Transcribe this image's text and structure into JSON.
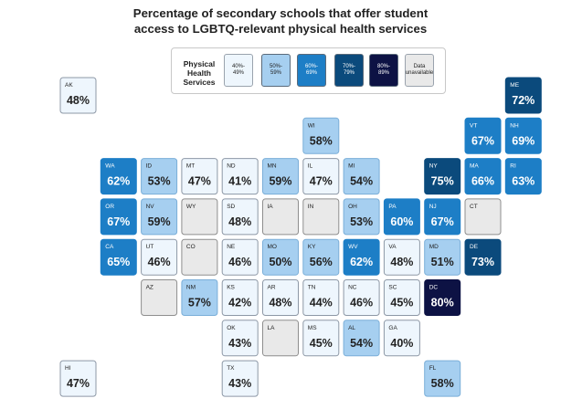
{
  "title_line1": "Percentage of secondary schools that offer student",
  "title_line2": "access to LGBTQ-relevant physical health services",
  "legend": {
    "title_lines": [
      "Physical",
      "Health",
      "Services"
    ],
    "bins": [
      {
        "lines": [
          "40%-",
          "49%"
        ],
        "fill": "#eef6fd",
        "text": "#222222"
      },
      {
        "lines": [
          "50%-",
          "59%"
        ],
        "fill": "#a6cff0",
        "text": "#222222"
      },
      {
        "lines": [
          "60%-",
          "69%"
        ],
        "fill": "#1d7ec6",
        "text": "#ffffff"
      },
      {
        "lines": [
          "70%-",
          "79%"
        ],
        "fill": "#0b4a7c",
        "text": "#ffffff"
      },
      {
        "lines": [
          "80%-",
          "89%"
        ],
        "fill": "#0d1244",
        "text": "#ffffff"
      },
      {
        "lines": [
          "Data",
          "unavailable"
        ],
        "fill": "#e9e9e9",
        "text": "#222222"
      }
    ]
  },
  "chart_data": {
    "type": "tile-map",
    "title": "Percentage of secondary schools that offer student access to LGBTQ-relevant physical health services",
    "legend_title": "Physical Health Services",
    "tiles": [
      {
        "state": "AK",
        "row": 0,
        "col": 0,
        "value": 48,
        "label": "48%"
      },
      {
        "state": "ME",
        "row": 0,
        "col": 11,
        "value": 72,
        "label": "72%"
      },
      {
        "state": "WI",
        "row": 1,
        "col": 6,
        "value": 58,
        "label": "58%"
      },
      {
        "state": "VT",
        "row": 1,
        "col": 10,
        "value": 67,
        "label": "67%"
      },
      {
        "state": "NH",
        "row": 1,
        "col": 11,
        "value": 69,
        "label": "69%"
      },
      {
        "state": "WA",
        "row": 2,
        "col": 1,
        "value": 62,
        "label": "62%"
      },
      {
        "state": "ID",
        "row": 2,
        "col": 2,
        "value": 53,
        "label": "53%"
      },
      {
        "state": "MT",
        "row": 2,
        "col": 3,
        "value": 47,
        "label": "47%"
      },
      {
        "state": "ND",
        "row": 2,
        "col": 4,
        "value": 41,
        "label": "41%"
      },
      {
        "state": "MN",
        "row": 2,
        "col": 5,
        "value": 59,
        "label": "59%"
      },
      {
        "state": "IL",
        "row": 2,
        "col": 6,
        "value": 47,
        "label": "47%"
      },
      {
        "state": "MI",
        "row": 2,
        "col": 7,
        "value": 54,
        "label": "54%"
      },
      {
        "state": "NY",
        "row": 2,
        "col": 9,
        "value": 75,
        "label": "75%"
      },
      {
        "state": "MA",
        "row": 2,
        "col": 10,
        "value": 66,
        "label": "66%"
      },
      {
        "state": "RI",
        "row": 2,
        "col": 11,
        "value": 63,
        "label": "63%"
      },
      {
        "state": "OR",
        "row": 3,
        "col": 1,
        "value": 67,
        "label": "67%"
      },
      {
        "state": "NV",
        "row": 3,
        "col": 2,
        "value": 59,
        "label": "59%"
      },
      {
        "state": "WY",
        "row": 3,
        "col": 3,
        "value": null,
        "label": ""
      },
      {
        "state": "SD",
        "row": 3,
        "col": 4,
        "value": 48,
        "label": "48%"
      },
      {
        "state": "IA",
        "row": 3,
        "col": 5,
        "value": null,
        "label": ""
      },
      {
        "state": "IN",
        "row": 3,
        "col": 6,
        "value": null,
        "label": ""
      },
      {
        "state": "OH",
        "row": 3,
        "col": 7,
        "value": 53,
        "label": "53%"
      },
      {
        "state": "PA",
        "row": 3,
        "col": 8,
        "value": 60,
        "label": "60%"
      },
      {
        "state": "NJ",
        "row": 3,
        "col": 9,
        "value": 67,
        "label": "67%"
      },
      {
        "state": "CT",
        "row": 3,
        "col": 10,
        "value": null,
        "label": ""
      },
      {
        "state": "CA",
        "row": 4,
        "col": 1,
        "value": 65,
        "label": "65%"
      },
      {
        "state": "UT",
        "row": 4,
        "col": 2,
        "value": 46,
        "label": "46%"
      },
      {
        "state": "CO",
        "row": 4,
        "col": 3,
        "value": null,
        "label": ""
      },
      {
        "state": "NE",
        "row": 4,
        "col": 4,
        "value": 46,
        "label": "46%"
      },
      {
        "state": "MO",
        "row": 4,
        "col": 5,
        "value": 50,
        "label": "50%"
      },
      {
        "state": "KY",
        "row": 4,
        "col": 6,
        "value": 56,
        "label": "56%"
      },
      {
        "state": "WV",
        "row": 4,
        "col": 7,
        "value": 62,
        "label": "62%"
      },
      {
        "state": "VA",
        "row": 4,
        "col": 8,
        "value": 48,
        "label": "48%"
      },
      {
        "state": "MD",
        "row": 4,
        "col": 9,
        "value": 51,
        "label": "51%"
      },
      {
        "state": "DE",
        "row": 4,
        "col": 10,
        "value": 73,
        "label": "73%"
      },
      {
        "state": "AZ",
        "row": 5,
        "col": 2,
        "value": null,
        "label": ""
      },
      {
        "state": "NM",
        "row": 5,
        "col": 3,
        "value": 57,
        "label": "57%"
      },
      {
        "state": "KS",
        "row": 5,
        "col": 4,
        "value": 42,
        "label": "42%"
      },
      {
        "state": "AR",
        "row": 5,
        "col": 5,
        "value": 48,
        "label": "48%"
      },
      {
        "state": "TN",
        "row": 5,
        "col": 6,
        "value": 44,
        "label": "44%"
      },
      {
        "state": "NC",
        "row": 5,
        "col": 7,
        "value": 46,
        "label": "46%"
      },
      {
        "state": "SC",
        "row": 5,
        "col": 8,
        "value": 45,
        "label": "45%"
      },
      {
        "state": "DC",
        "row": 5,
        "col": 9,
        "value": 80,
        "label": "80%"
      },
      {
        "state": "OK",
        "row": 6,
        "col": 4,
        "value": 43,
        "label": "43%"
      },
      {
        "state": "LA",
        "row": 6,
        "col": 5,
        "value": null,
        "label": ""
      },
      {
        "state": "MS",
        "row": 6,
        "col": 6,
        "value": 45,
        "label": "45%"
      },
      {
        "state": "AL",
        "row": 6,
        "col": 7,
        "value": 54,
        "label": "54%"
      },
      {
        "state": "GA",
        "row": 6,
        "col": 8,
        "value": 40,
        "label": "40%"
      },
      {
        "state": "HI",
        "row": 7,
        "col": 0,
        "value": 47,
        "label": "47%"
      },
      {
        "state": "TX",
        "row": 7,
        "col": 4,
        "value": 43,
        "label": "43%"
      },
      {
        "state": "FL",
        "row": 7,
        "col": 9,
        "value": 58,
        "label": "58%"
      }
    ]
  }
}
